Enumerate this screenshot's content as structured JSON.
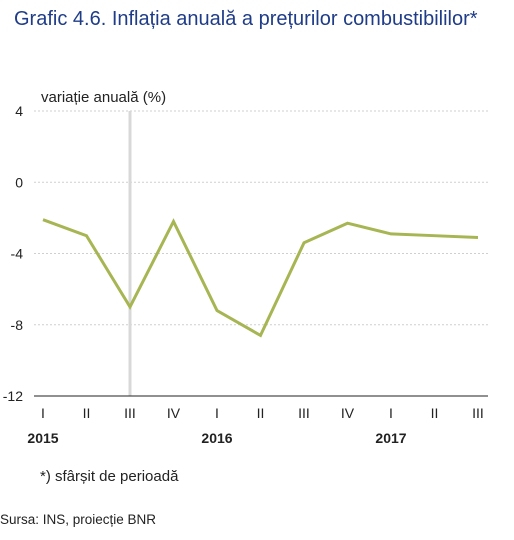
{
  "title": "Grafic 4.6. Inflația anuală a prețurilor combustibililor*",
  "note": "*) sfârșit de perioadă",
  "source": "Sursa: INS, proiecție BNR",
  "colors": {
    "line": "#a7b553",
    "title": "#1f3c88",
    "grid": "#cfcfcf",
    "separator": "#d8d8d8"
  },
  "chart_data": {
    "type": "line",
    "ylabel": "variație anuală (%)",
    "ylim": [
      -12,
      4
    ],
    "yticks": [
      "4",
      "0",
      "-4",
      "-8",
      "-12"
    ],
    "yticks_values": [
      4,
      0,
      -4,
      -8,
      -12
    ],
    "grid": true,
    "categories": [
      "I",
      "II",
      "III",
      "IV",
      "I",
      "II",
      "III",
      "IV",
      "I",
      "II",
      "III"
    ],
    "years": [
      {
        "label": "2015",
        "index": 0
      },
      {
        "label": "2016",
        "index": 4
      },
      {
        "label": "2017",
        "index": 8
      }
    ],
    "separator_after_index": 2,
    "series": [
      {
        "values": [
          -2.1,
          -3.0,
          -7.0,
          -2.2,
          -7.2,
          -8.6,
          -3.4,
          -2.3,
          -2.9,
          -3.0,
          -3.1
        ]
      }
    ]
  }
}
